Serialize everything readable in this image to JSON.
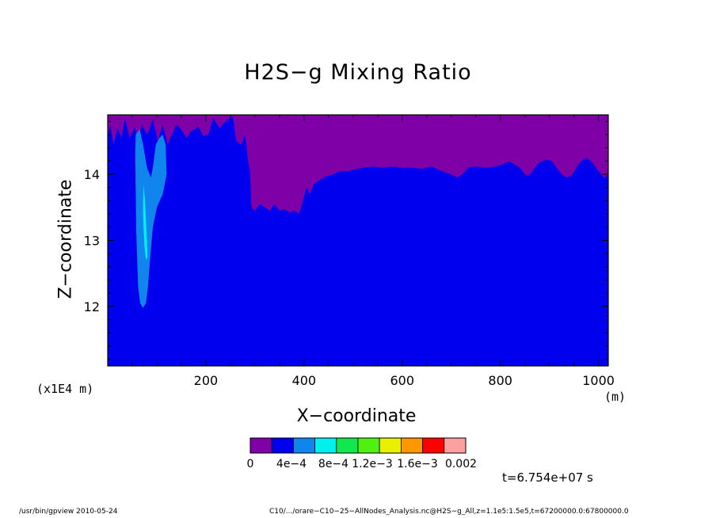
{
  "chart_data": {
    "type": "heatmap",
    "title": "H2S−g Mixing Ratio",
    "xlabel": "X−coordinate",
    "ylabel": "Z−coordinate",
    "x_unit": "(m)",
    "y_multiplier": "(x1E4 m)",
    "xlim": [
      0,
      1020
    ],
    "ylim": [
      11.1,
      14.9
    ],
    "x_ticks": [
      200,
      400,
      600,
      800,
      1000
    ],
    "y_ticks": [
      12,
      13,
      14
    ],
    "x_tick_labels": [
      "200",
      "400",
      "600",
      "800",
      "1000"
    ],
    "y_tick_labels": [
      "12",
      "13",
      "14"
    ],
    "background_fill": "#0000ee",
    "upper_region": {
      "color": "#8000a8",
      "boundary": [
        [
          0,
          14.55
        ],
        [
          5,
          14.75
        ],
        [
          12,
          14.45
        ],
        [
          20,
          14.7
        ],
        [
          28,
          14.55
        ],
        [
          35,
          14.85
        ],
        [
          45,
          14.55
        ],
        [
          55,
          14.72
        ],
        [
          62,
          14.5
        ],
        [
          70,
          14.75
        ],
        [
          80,
          14.6
        ],
        [
          92,
          14.83
        ],
        [
          102,
          14.5
        ],
        [
          112,
          14.75
        ],
        [
          122,
          14.45
        ],
        [
          132,
          14.62
        ],
        [
          140,
          14.75
        ],
        [
          150,
          14.68
        ],
        [
          160,
          14.55
        ],
        [
          170,
          14.65
        ],
        [
          185,
          14.72
        ],
        [
          195,
          14.58
        ],
        [
          205,
          14.6
        ],
        [
          215,
          14.85
        ],
        [
          228,
          14.7
        ],
        [
          240,
          14.8
        ],
        [
          255,
          14.88
        ],
        [
          262,
          14.5
        ],
        [
          272,
          14.45
        ],
        [
          280,
          14.6
        ],
        [
          286,
          14.2
        ],
        [
          290,
          14.05
        ],
        [
          293,
          13.5
        ],
        [
          300,
          13.45
        ],
        [
          310,
          13.55
        ],
        [
          320,
          13.5
        ],
        [
          330,
          13.45
        ],
        [
          340,
          13.55
        ],
        [
          350,
          13.45
        ],
        [
          360,
          13.48
        ],
        [
          370,
          13.42
        ],
        [
          380,
          13.45
        ],
        [
          390,
          13.4
        ],
        [
          398,
          13.6
        ],
        [
          405,
          13.8
        ],
        [
          412,
          13.7
        ],
        [
          420,
          13.85
        ],
        [
          430,
          13.9
        ],
        [
          440,
          13.95
        ],
        [
          450,
          13.98
        ],
        [
          460,
          14.0
        ],
        [
          475,
          14.05
        ],
        [
          490,
          14.05
        ],
        [
          505,
          14.08
        ],
        [
          520,
          14.1
        ],
        [
          540,
          14.12
        ],
        [
          560,
          14.1
        ],
        [
          580,
          14.12
        ],
        [
          600,
          14.1
        ],
        [
          620,
          14.1
        ],
        [
          640,
          14.08
        ],
        [
          660,
          14.12
        ],
        [
          680,
          14.05
        ],
        [
          700,
          14.0
        ],
        [
          712,
          13.95
        ],
        [
          722,
          14.0
        ],
        [
          735,
          14.1
        ],
        [
          750,
          14.12
        ],
        [
          770,
          14.1
        ],
        [
          790,
          14.12
        ],
        [
          805,
          14.15
        ],
        [
          818,
          14.2
        ],
        [
          828,
          14.15
        ],
        [
          840,
          14.1
        ],
        [
          850,
          14.0
        ],
        [
          858,
          13.98
        ],
        [
          866,
          14.05
        ],
        [
          875,
          14.15
        ],
        [
          885,
          14.2
        ],
        [
          895,
          14.22
        ],
        [
          905,
          14.2
        ],
        [
          915,
          14.1
        ],
        [
          925,
          14.0
        ],
        [
          935,
          13.95
        ],
        [
          945,
          13.98
        ],
        [
          955,
          14.1
        ],
        [
          965,
          14.2
        ],
        [
          975,
          14.25
        ],
        [
          985,
          14.2
        ],
        [
          995,
          14.1
        ],
        [
          1005,
          14.0
        ],
        [
          1012,
          13.95
        ],
        [
          1020,
          14.0
        ]
      ]
    },
    "plumes": [
      {
        "color": "#1085ee",
        "outline": [
          [
            57,
            14.6
          ],
          [
            65,
            14.68
          ],
          [
            72,
            14.45
          ],
          [
            80,
            14.1
          ],
          [
            88,
            13.95
          ],
          [
            92,
            14.1
          ],
          [
            98,
            14.45
          ],
          [
            105,
            14.55
          ],
          [
            112,
            14.6
          ],
          [
            118,
            14.45
          ],
          [
            120,
            14.0
          ],
          [
            112,
            13.7
          ],
          [
            100,
            13.5
          ],
          [
            92,
            13.2
          ],
          [
            86,
            12.7
          ],
          [
            82,
            12.3
          ],
          [
            78,
            12.05
          ],
          [
            72,
            11.98
          ],
          [
            66,
            12.05
          ],
          [
            62,
            12.3
          ],
          [
            60,
            12.7
          ],
          [
            58,
            13.2
          ],
          [
            57,
            13.8
          ],
          [
            56,
            14.3
          ]
        ]
      },
      {
        "color": "#00f0f0",
        "outline": [
          [
            73,
            13.85
          ],
          [
            76,
            13.6
          ],
          [
            78,
            13.3
          ],
          [
            80,
            12.95
          ],
          [
            81,
            12.75
          ],
          [
            78,
            12.7
          ],
          [
            75,
            12.9
          ],
          [
            73,
            13.2
          ],
          [
            72,
            13.5
          ]
        ]
      }
    ],
    "colorbar": {
      "colors": [
        "#8000a8",
        "#0000ee",
        "#1085ee",
        "#00f0f0",
        "#10e850",
        "#50f010",
        "#e8f000",
        "#ff9800",
        "#ff0000",
        "#ffa0a0"
      ],
      "labels": [
        "0",
        "4e−4",
        "8e−4",
        "1.2e−3",
        "1.6e−3",
        "0.002"
      ]
    }
  },
  "annotation": {
    "time": "t=6.754e+07 s"
  },
  "footer": {
    "left": "/usr/bin/gpview   2010-05-24",
    "right": "C10/.../orare−C10−25−AllNodes_Analysis.nc@H2S−g_All,z=1.1e5:1.5e5,t=67200000.0:67800000.0"
  }
}
